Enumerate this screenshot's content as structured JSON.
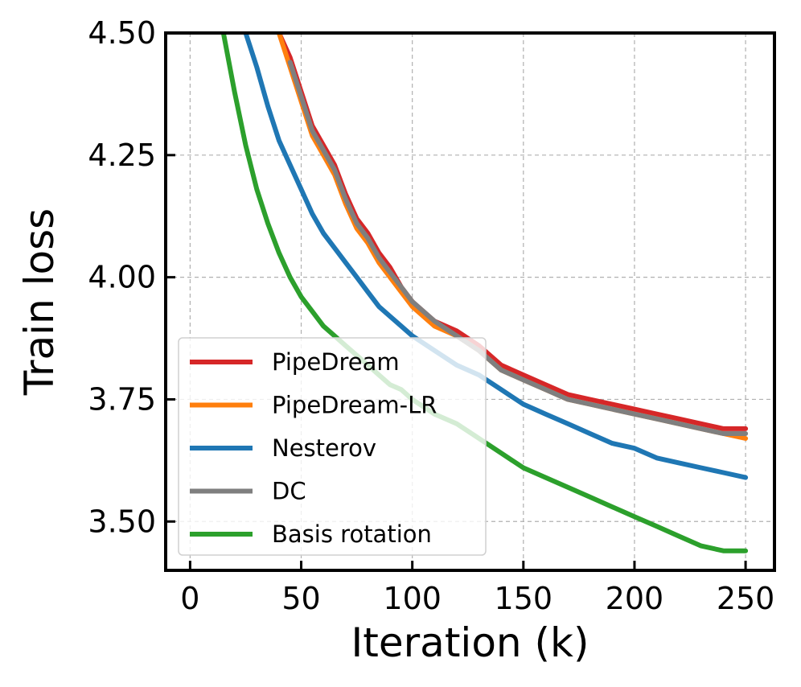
{
  "chart_data": {
    "type": "line",
    "title": "",
    "xlabel": "Iteration (k)",
    "ylabel": "Train loss",
    "xlim": [
      -11,
      263
    ],
    "ylim": [
      3.4,
      4.5
    ],
    "xticks": [
      0,
      50,
      100,
      150,
      200,
      250
    ],
    "xtick_labels": [
      "0",
      "50",
      "100",
      "150",
      "200",
      "250"
    ],
    "yticks": [
      3.5,
      3.75,
      4.0,
      4.25,
      4.5
    ],
    "ytick_labels": [
      "3.50",
      "3.75",
      "4.00",
      "4.25",
      "4.50"
    ],
    "grid": true,
    "legend_position": "lower-left",
    "series": [
      {
        "name": "PipeDream",
        "color": "#d62728",
        "x": [
          40,
          45,
          50,
          55,
          60,
          65,
          70,
          75,
          80,
          85,
          90,
          95,
          100,
          110,
          120,
          130,
          140,
          150,
          160,
          170,
          180,
          190,
          200,
          210,
          220,
          230,
          240,
          250
        ],
        "y": [
          4.5,
          4.45,
          4.38,
          4.31,
          4.27,
          4.23,
          4.17,
          4.12,
          4.09,
          4.05,
          4.02,
          3.98,
          3.95,
          3.91,
          3.89,
          3.86,
          3.82,
          3.8,
          3.78,
          3.76,
          3.75,
          3.74,
          3.73,
          3.72,
          3.71,
          3.7,
          3.69,
          3.69
        ]
      },
      {
        "name": "PipeDream-LR",
        "color": "#ff7f0e",
        "x": [
          40,
          45,
          50,
          55,
          60,
          65,
          70,
          75,
          80,
          85,
          90,
          95,
          100,
          110,
          120,
          130,
          140,
          150,
          160,
          170,
          180,
          190,
          200,
          210,
          220,
          230,
          240,
          250
        ],
        "y": [
          4.5,
          4.43,
          4.36,
          4.29,
          4.25,
          4.21,
          4.15,
          4.1,
          4.07,
          4.03,
          4.0,
          3.97,
          3.94,
          3.9,
          3.88,
          3.85,
          3.81,
          3.79,
          3.77,
          3.75,
          3.74,
          3.73,
          3.72,
          3.71,
          3.7,
          3.69,
          3.68,
          3.67
        ]
      },
      {
        "name": "Nesterov",
        "color": "#1f77b4",
        "x": [
          25,
          30,
          35,
          40,
          45,
          50,
          55,
          60,
          65,
          70,
          75,
          80,
          85,
          90,
          95,
          100,
          110,
          120,
          130,
          140,
          150,
          160,
          170,
          180,
          190,
          200,
          210,
          220,
          230,
          240,
          250
        ],
        "y": [
          4.5,
          4.43,
          4.35,
          4.28,
          4.23,
          4.18,
          4.13,
          4.09,
          4.06,
          4.03,
          4.0,
          3.97,
          3.94,
          3.92,
          3.9,
          3.88,
          3.85,
          3.82,
          3.8,
          3.77,
          3.74,
          3.72,
          3.7,
          3.68,
          3.66,
          3.65,
          3.63,
          3.62,
          3.61,
          3.6,
          3.59
        ]
      },
      {
        "name": "DC",
        "color": "#7f7f7f",
        "x": [
          45,
          50,
          55,
          60,
          65,
          70,
          75,
          80,
          85,
          90,
          95,
          100,
          110,
          120,
          130,
          140,
          150,
          160,
          170,
          180,
          190,
          200,
          210,
          220,
          230,
          240,
          250
        ],
        "y": [
          4.44,
          4.37,
          4.3,
          4.26,
          4.22,
          4.16,
          4.11,
          4.08,
          4.04,
          4.01,
          3.98,
          3.95,
          3.91,
          3.88,
          3.85,
          3.81,
          3.79,
          3.77,
          3.75,
          3.74,
          3.73,
          3.72,
          3.71,
          3.7,
          3.69,
          3.68,
          3.68
        ]
      },
      {
        "name": "Basis rotation",
        "color": "#2ca02c",
        "x": [
          15,
          20,
          25,
          30,
          35,
          40,
          45,
          50,
          55,
          60,
          65,
          70,
          75,
          80,
          85,
          90,
          95,
          100,
          110,
          120,
          130,
          140,
          150,
          160,
          170,
          180,
          190,
          200,
          210,
          220,
          230,
          240,
          250
        ],
        "y": [
          4.5,
          4.38,
          4.27,
          4.18,
          4.11,
          4.05,
          4.0,
          3.96,
          3.93,
          3.9,
          3.88,
          3.86,
          3.84,
          3.82,
          3.8,
          3.78,
          3.77,
          3.75,
          3.72,
          3.7,
          3.67,
          3.64,
          3.61,
          3.59,
          3.57,
          3.55,
          3.53,
          3.51,
          3.49,
          3.47,
          3.45,
          3.44,
          3.44
        ]
      }
    ]
  }
}
